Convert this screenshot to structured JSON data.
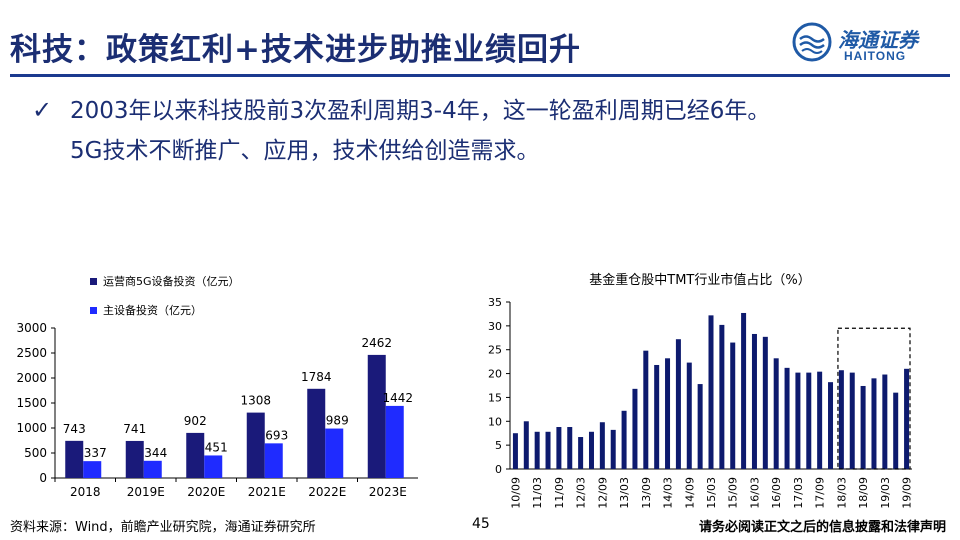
{
  "header": {
    "title": "科技：政策红利+技术进步助推业绩回升",
    "logo_cn": "海通证券",
    "logo_en": "HAITONG"
  },
  "bullet": {
    "icon": "check-icon",
    "line1": "2003年以来科技股前3次盈利周期3-4年，这一轮盈利周期已经6年。",
    "line2": "5G技术不断推广、应用，技术供给创造需求。"
  },
  "footer": {
    "source": "资料来源：Wind，前瞻产业研究院，海通证券研究所",
    "page": "45",
    "disclaimer": "请务必阅读正文之后的信息披露和法律声明"
  },
  "colors": {
    "title": "#1b2e73",
    "series1": "#1a1a7a",
    "series2": "#1f2bff",
    "bar_right": "#0d1a6e"
  },
  "chart_data": [
    {
      "type": "bar",
      "title": "",
      "categories": [
        "2018",
        "2019E",
        "2020E",
        "2021E",
        "2022E",
        "2023E"
      ],
      "series": [
        {
          "name": "运营商5G设备投资（亿元）",
          "values": [
            743,
            741,
            902,
            1308,
            1784,
            2462
          ]
        },
        {
          "name": "主设备投资（亿元）",
          "values": [
            337,
            344,
            451,
            693,
            989,
            1442
          ]
        }
      ],
      "ylim": [
        0,
        3000
      ],
      "yticks": [
        0,
        500,
        1000,
        1500,
        2000,
        2500,
        3000
      ],
      "legend_position": "top-left",
      "grid": false
    },
    {
      "type": "bar",
      "title": "基金重仓股中TMT行业市值占比（%）",
      "xtick_labels": [
        "10/09",
        "11/03",
        "11/09",
        "12/03",
        "12/09",
        "13/03",
        "13/09",
        "14/03",
        "14/09",
        "15/03",
        "15/09",
        "16/03",
        "16/09",
        "17/03",
        "17/09",
        "18/03",
        "18/09",
        "19/03",
        "19/09"
      ],
      "values": [
        7.5,
        10,
        7.8,
        7.8,
        8.8,
        8.8,
        6.7,
        7.8,
        9.8,
        8.2,
        12.2,
        16.8,
        24.8,
        21.8,
        23.2,
        27.2,
        22.3,
        17.8,
        32.2,
        30.2,
        26.5,
        32.7,
        28.3,
        27.7,
        23.2,
        21.2,
        20.2,
        20.2,
        20.4,
        18.2,
        20.7,
        20.2,
        17.4,
        19.0,
        19.8,
        16.0,
        21.0
      ],
      "ylim": [
        0,
        35
      ],
      "yticks": [
        0,
        5,
        10,
        15,
        20,
        25,
        30,
        35
      ],
      "highlight_box": "last 7 bars (18/03–19/09), dashed",
      "grid": false
    }
  ]
}
